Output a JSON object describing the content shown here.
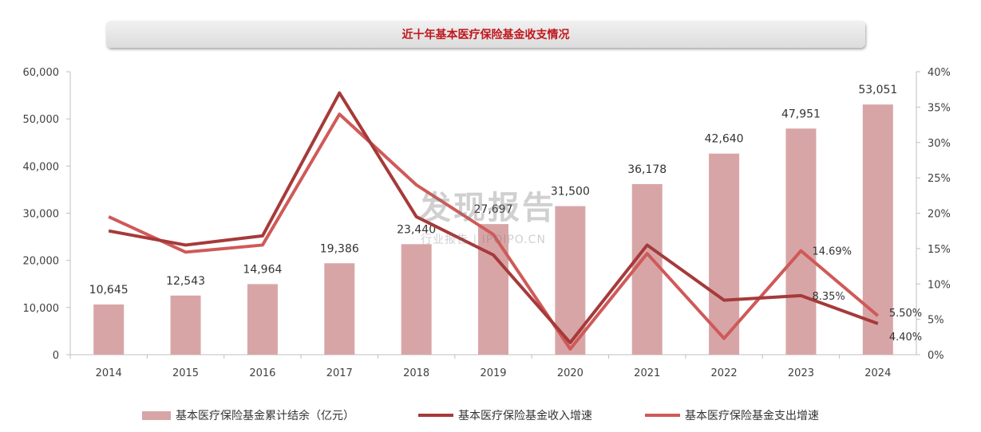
{
  "title": "近十年基本医疗保险基金收支情况",
  "colors": {
    "bar": "#d8a5a7",
    "income": "#a63a3a",
    "expense": "#cf5a59",
    "title": "#c0161c"
  },
  "watermark": {
    "main": "发现报告",
    "sub": "行业报告 | IPOIPO.CN"
  },
  "chart_data": {
    "type": "bar",
    "categories": [
      "2014",
      "2015",
      "2016",
      "2017",
      "2018",
      "2019",
      "2020",
      "2021",
      "2022",
      "2023",
      "2024"
    ],
    "series": [
      {
        "name": "基本医疗保险基金累计结余（亿元）",
        "type": "bar",
        "axis": "left",
        "values": [
          10645,
          12543,
          14964,
          19386,
          23440,
          27697,
          31500,
          36178,
          42640,
          47951,
          53051
        ],
        "labels": [
          "10,645",
          "12,543",
          "14,964",
          "19,386",
          "23,440",
          "27,697",
          "31,500",
          "36,178",
          "42,640",
          "47,951",
          "53,051"
        ]
      },
      {
        "name": "基本医疗保险基金收入增速",
        "type": "line",
        "axis": "right",
        "values": [
          17.5,
          15.5,
          16.8,
          37.0,
          19.5,
          14.1,
          1.7,
          15.5,
          7.7,
          8.35,
          4.4
        ]
      },
      {
        "name": "基本医疗保险基金支出增速",
        "type": "line",
        "axis": "right",
        "values": [
          19.5,
          14.5,
          15.5,
          34.0,
          24.0,
          17.0,
          0.8,
          14.3,
          2.3,
          14.69,
          5.5
        ]
      }
    ],
    "line_labels": [
      {
        "series": 2,
        "index": 9,
        "text": "14.69%"
      },
      {
        "series": 1,
        "index": 9,
        "text": "8.35%"
      },
      {
        "series": 2,
        "index": 10,
        "text": "5.50%"
      },
      {
        "series": 1,
        "index": 10,
        "text": "4.40%"
      }
    ],
    "y_left": {
      "min": 0,
      "max": 60000,
      "ticks": [
        "0",
        "10,000",
        "20,000",
        "30,000",
        "40,000",
        "50,000",
        "60,000"
      ]
    },
    "y_right": {
      "min": 0,
      "max": 40,
      "ticks": [
        "0%",
        "5%",
        "10%",
        "15%",
        "20%",
        "25%",
        "30%",
        "35%",
        "40%"
      ]
    },
    "legend_position": "bottom"
  }
}
